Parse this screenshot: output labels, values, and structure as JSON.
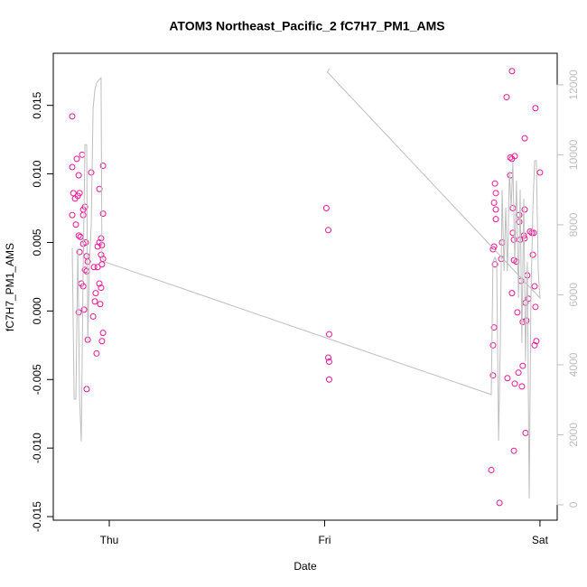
{
  "chart_data": {
    "type": "scatter",
    "title": "ATOM3 Northeast_Pacific_2 fC7H7_PM1_AMS",
    "x_label": "Date",
    "y_label": "fC7H7_PM1_AMS",
    "xlim": [
      -0.26,
      2.08
    ],
    "xticks": [
      {
        "value": 0,
        "label": "Thu"
      },
      {
        "value": 1,
        "label": "Fri"
      },
      {
        "value": 2,
        "label": "Sat"
      }
    ],
    "ylim": [
      -0.01526,
      0.0188
    ],
    "yticks": [
      -0.015,
      {
        "value": -0.01,
        "label": "-0.010"
      },
      -0.005,
      {
        "value": 0,
        "label": "0.000"
      },
      0.005,
      {
        "value": 0.01,
        "label": "0.010"
      },
      0.015
    ],
    "y2lim": [
      -440,
      12900
    ],
    "y2ticks": [
      0,
      2000,
      4000,
      6000,
      8000,
      10000,
      12000
    ],
    "y2_color": "#bebebe",
    "series": [
      {
        "type": "scatter",
        "color": "#f0169a",
        "x": [
          -0.172,
          -0.172,
          -0.167,
          -0.159,
          -0.172,
          -0.155,
          -0.151,
          -0.142,
          -0.146,
          -0.138,
          -0.142,
          -0.134,
          -0.126,
          -0.121,
          -0.113,
          -0.121,
          -0.121,
          -0.109,
          -0.113,
          -0.121,
          -0.13,
          -0.142,
          -0.138,
          -0.105,
          -0.1,
          -0.105,
          -0.117,
          -0.1,
          -0.105,
          -0.084,
          -0.075,
          -0.071,
          -0.067,
          -0.063,
          -0.059,
          -0.054,
          -0.054,
          -0.046,
          -0.046,
          -0.046,
          -0.042,
          -0.038,
          -0.038,
          -0.038,
          -0.034,
          -0.034,
          -0.029,
          -0.029,
          -0.029,
          -0.034,
          -0.029,
          1.008,
          1.017,
          1.021,
          1.017,
          1.021,
          1.021,
          1.774,
          1.782,
          1.782,
          1.787,
          1.782,
          1.787,
          1.791,
          1.787,
          1.791,
          1.795,
          1.795,
          1.795,
          1.812,
          1.82,
          1.824,
          1.845,
          1.849,
          1.862,
          1.862,
          1.87,
          1.87,
          1.874,
          1.874,
          1.879,
          1.879,
          1.879,
          1.883,
          1.883,
          1.891,
          1.895,
          1.9,
          1.904,
          1.904,
          1.908,
          1.912,
          1.916,
          1.92,
          1.92,
          1.925,
          1.929,
          1.929,
          1.929,
          1.933,
          1.933,
          1.937,
          1.941,
          1.946,
          1.954,
          1.962,
          1.967,
          1.971,
          1.975,
          1.979,
          1.979,
          1.983,
          1.975,
          2.0,
          1.87
        ],
        "values": [
          0.0142,
          0.0105,
          0.0086,
          0.0082,
          0.007,
          0.0063,
          0.0111,
          0.0099,
          0.0084,
          0.0086,
          0.0055,
          0.0054,
          0.0114,
          0.0074,
          0.0076,
          0.007,
          0.0049,
          0.005,
          0.003,
          0.0018,
          0.002,
          -0.0001,
          0.0043,
          0.004,
          0.0036,
          0.0029,
          0.0001,
          -0.0021,
          -0.0057,
          0.0101,
          -0.0004,
          0.0032,
          0.0007,
          0.0013,
          -0.0031,
          0.0032,
          0.0047,
          0.005,
          0.0089,
          0.002,
          0.0005,
          0.0017,
          0.0041,
          0.0053,
          0.0048,
          0.0034,
          0.0106,
          0.0071,
          -0.0016,
          -0.0022,
          0.0038,
          0.0075,
          0.0059,
          -0.0017,
          -0.0034,
          -0.0037,
          -0.005,
          -0.0116,
          -0.0047,
          -0.0025,
          -0.0012,
          0.0045,
          0.0047,
          0.0034,
          0.0079,
          0.0093,
          0.0086,
          0.0074,
          0.0067,
          -0.014,
          0.0038,
          0.005,
          0.0156,
          -0.0049,
          0.0099,
          0.0112,
          0.0111,
          0.0013,
          0.0057,
          0.0075,
          -0.0102,
          0.0052,
          0.0037,
          -0.0053,
          0.0113,
          0.0036,
          -0.0001,
          -0.0045,
          0.007,
          0.0065,
          0.0052,
          0.0022,
          -0.0055,
          -0.004,
          -0.0008,
          0.0055,
          0.0053,
          0.0074,
          0.0126,
          -0.0089,
          0.0006,
          -0.0007,
          0.0026,
          0.0009,
          0.0058,
          0.0057,
          0.0041,
          0.0057,
          0.0018,
          0.0003,
          0.0148,
          -0.0022,
          -0.0025,
          0.0101,
          0.0175
        ]
      },
      {
        "type": "line",
        "axis": "y2",
        "color": "#bebebe",
        "x": [
          -0.172,
          -0.163,
          -0.155,
          -0.146,
          -0.138,
          -0.13,
          -0.121,
          -0.113,
          -0.105,
          -0.1,
          -0.092,
          -0.084,
          -0.075,
          -0.067,
          -0.059,
          -0.046,
          -0.038,
          -0.034,
          -0.021,
          1.774,
          1.782,
          1.791,
          1.799,
          1.808,
          1.816,
          1.824,
          1.833,
          1.841,
          1.849,
          1.858,
          1.866,
          1.874,
          1.883,
          1.891,
          1.9,
          1.908,
          1.916,
          1.925,
          1.933,
          1.941,
          1.95,
          1.958,
          1.967,
          1.975,
          1.983,
          1.992,
          2.0,
          1.013,
          1.021
        ],
        "values": [
          7330,
          3020,
          3020,
          7330,
          3070,
          1810,
          6810,
          10290,
          10290,
          4620,
          6940,
          7970,
          11330,
          11840,
          12050,
          12150,
          12200,
          7070,
          6940,
          3150,
          6940,
          7070,
          6940,
          1830,
          4620,
          9000,
          6680,
          8490,
          6680,
          9520,
          8490,
          9780,
          6940,
          9260,
          5910,
          9000,
          4620,
          8750,
          4100,
          6940,
          180,
          5910,
          8490,
          9830,
          9830,
          6680,
          5910,
          12360,
          12460
        ]
      }
    ]
  }
}
